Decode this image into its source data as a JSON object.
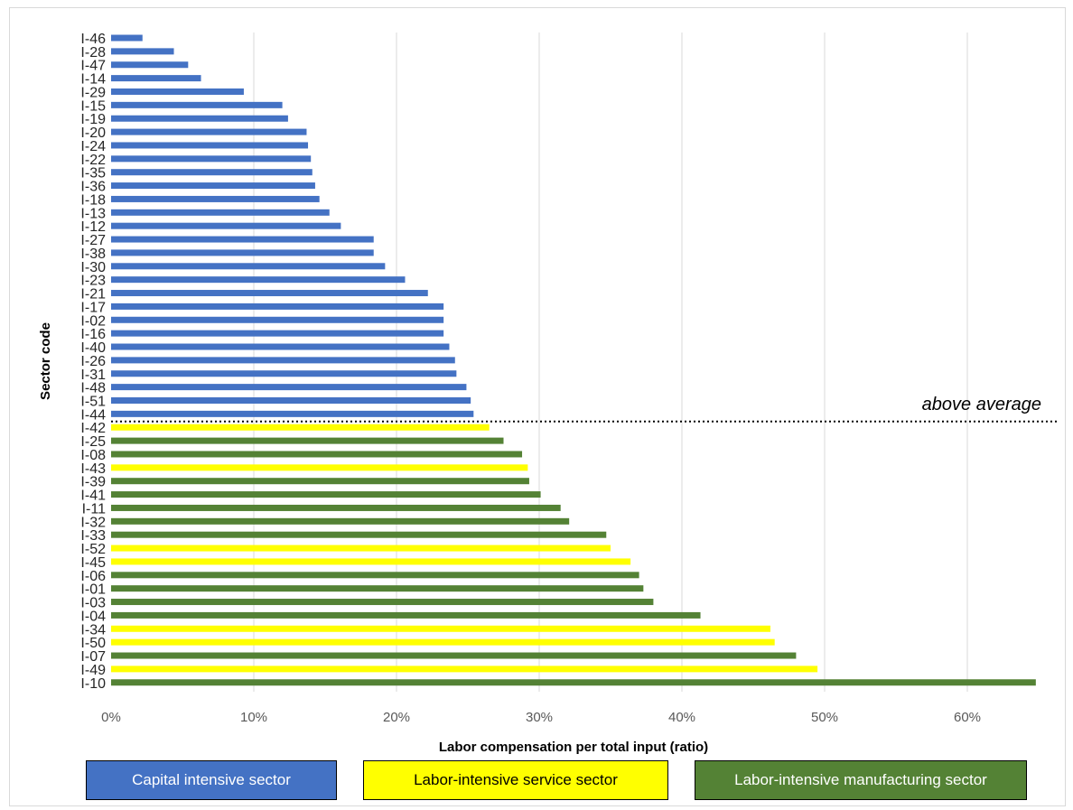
{
  "colors": {
    "capital": "#4472c4",
    "service": "#ffff00",
    "manufacturing": "#548235",
    "grid": "#d9d9d9",
    "axis_text": "#595959",
    "cutoff_line": "#000000"
  },
  "chart_data": {
    "type": "bar",
    "orientation": "horizontal",
    "xlabel": "Labor compensation per total input (ratio)",
    "ylabel": "Sector code",
    "xlim": [
      0,
      0.65
    ],
    "x_ticks": [
      "0%",
      "10%",
      "20%",
      "30%",
      "40%",
      "50%",
      "60%"
    ],
    "grid": "vertical",
    "threshold_label": "above average",
    "threshold_after_category": "I-44",
    "series_types": {
      "capital": "Capital intensive sector",
      "service": "Labor-intensive service sector",
      "manufacturing": "Labor-intensive manufacturing sector"
    },
    "categories": [
      "I-46",
      "I-28",
      "I-47",
      "I-14",
      "I-29",
      "I-15",
      "I-19",
      "I-20",
      "I-24",
      "I-22",
      "I-35",
      "I-36",
      "I-18",
      "I-13",
      "I-12",
      "I-27",
      "I-38",
      "I-30",
      "I-23",
      "I-21",
      "I-17",
      "I-02",
      "I-16",
      "I-40",
      "I-26",
      "I-31",
      "I-48",
      "I-51",
      "I-44",
      "I-42",
      "I-25",
      "I-08",
      "I-43",
      "I-39",
      "I-41",
      "I-11",
      "I-32",
      "I-33",
      "I-52",
      "I-45",
      "I-06",
      "I-01",
      "I-03",
      "I-04",
      "I-34",
      "I-50",
      "I-07",
      "I-49",
      "I-10"
    ],
    "values": [
      0.022,
      0.044,
      0.054,
      0.063,
      0.093,
      0.12,
      0.124,
      0.137,
      0.138,
      0.14,
      0.141,
      0.143,
      0.146,
      0.153,
      0.161,
      0.184,
      0.184,
      0.192,
      0.206,
      0.222,
      0.233,
      0.233,
      0.233,
      0.237,
      0.241,
      0.242,
      0.249,
      0.252,
      0.254,
      0.265,
      0.275,
      0.288,
      0.292,
      0.293,
      0.301,
      0.315,
      0.321,
      0.347,
      0.35,
      0.364,
      0.37,
      0.373,
      0.38,
      0.413,
      0.462,
      0.465,
      0.48,
      0.495,
      0.648
    ],
    "sector_type": [
      "capital",
      "capital",
      "capital",
      "capital",
      "capital",
      "capital",
      "capital",
      "capital",
      "capital",
      "capital",
      "capital",
      "capital",
      "capital",
      "capital",
      "capital",
      "capital",
      "capital",
      "capital",
      "capital",
      "capital",
      "capital",
      "capital",
      "capital",
      "capital",
      "capital",
      "capital",
      "capital",
      "capital",
      "capital",
      "service",
      "manufacturing",
      "manufacturing",
      "service",
      "manufacturing",
      "manufacturing",
      "manufacturing",
      "manufacturing",
      "manufacturing",
      "service",
      "service",
      "manufacturing",
      "manufacturing",
      "manufacturing",
      "manufacturing",
      "service",
      "service",
      "manufacturing",
      "service",
      "manufacturing"
    ]
  },
  "legend": {
    "capital": "Capital intensive sector",
    "service": "Labor-intensive service sector",
    "manufacturing": "Labor-intensive manufacturing sector"
  }
}
